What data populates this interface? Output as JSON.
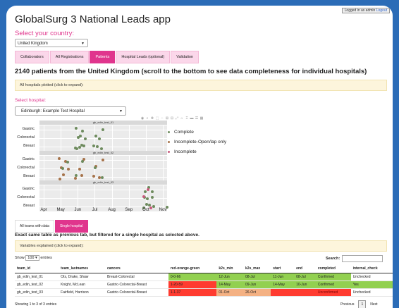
{
  "header": {
    "title": "GlobalSurg 3 National Leads app",
    "login_text": "Logged in as admin",
    "logout_label": "Logout"
  },
  "country": {
    "label": "Select your country:",
    "value": "United Kingdom"
  },
  "tabs": [
    {
      "label": "Collaborators"
    },
    {
      "label": "All Registrations"
    },
    {
      "label": "Patients",
      "active": true
    },
    {
      "label": "Hospital Leads (optional)"
    },
    {
      "label": "Validation"
    }
  ],
  "headline": "2140 patients from the United Kingdom (scroll to the bottom to see data completeness for individual hospitals)",
  "all_hospitals_notice": "All hospitals plotted (click to expand):",
  "hospital": {
    "label": "Select hospital:",
    "value": "Edinburgh: Example Test Hospital"
  },
  "chart_data": {
    "type": "scatter",
    "panels": [
      "gb_edin_test_01",
      "gb_edin_test_02",
      "gb_edin_test_03"
    ],
    "y_categories": [
      "Gastric",
      "Colorectal",
      "Breast"
    ],
    "x_ticks": [
      "Apr",
      "May",
      "Jun",
      "Jul",
      "Aug",
      "Sep",
      "Oct",
      "Nov"
    ],
    "legend": [
      {
        "label": "Complete",
        "color": "#6e8b5e"
      },
      {
        "label": "Incomplete-Open/lap only",
        "color": "#a6734a"
      },
      {
        "label": "Incomplete",
        "color": "#c85a7c"
      }
    ],
    "series": [
      {
        "panel": 0,
        "status": 0,
        "points": [
          [
            "Jun",
            0
          ],
          [
            "Jun",
            0
          ],
          [
            "Jun",
            1
          ],
          [
            "Jun",
            1
          ],
          [
            "Jun",
            1
          ],
          [
            "Jun",
            2
          ],
          [
            "Jun",
            2
          ],
          [
            "Jun",
            2
          ],
          [
            "Jun",
            2
          ],
          [
            "Jun",
            2
          ],
          [
            "Jul",
            0
          ],
          [
            "Jul",
            1
          ],
          [
            "Jul",
            1
          ],
          [
            "Jul",
            2
          ],
          [
            "Jul",
            2
          ],
          [
            "Jul",
            2
          ]
        ]
      },
      {
        "panel": 1,
        "status": 1,
        "points": [
          [
            "May",
            0
          ],
          [
            "May",
            0
          ],
          [
            "May",
            1
          ],
          [
            "May",
            1
          ],
          [
            "May",
            2
          ],
          [
            "May",
            2
          ],
          [
            "Jun",
            0
          ],
          [
            "Jun",
            1
          ],
          [
            "Jun",
            2
          ],
          [
            "Jun",
            2
          ],
          [
            "Jul",
            0
          ],
          [
            "Jul",
            1
          ],
          [
            "Jul",
            2
          ],
          [
            "Jul",
            2
          ]
        ]
      },
      {
        "panel": 1,
        "status": 0,
        "points": [
          [
            "May",
            0
          ],
          [
            "May",
            1
          ],
          [
            "Jun",
            2
          ],
          [
            "Jun",
            0
          ],
          [
            "Jul",
            1
          ],
          [
            "Jul",
            2
          ]
        ]
      },
      {
        "panel": 2,
        "status": 0,
        "points": [
          [
            "Oct",
            0
          ],
          [
            "Oct",
            0
          ],
          [
            "Oct",
            1
          ],
          [
            "Oct",
            1
          ],
          [
            "Oct",
            2
          ],
          [
            "Oct",
            2
          ],
          [
            "Oct",
            2
          ],
          [
            "Oct",
            2
          ],
          [
            "Nov",
            2
          ],
          [
            "Oct",
            1
          ],
          [
            "Oct",
            0
          ]
        ]
      },
      {
        "panel": 2,
        "status": 2,
        "points": [
          [
            "Oct",
            0
          ],
          [
            "Oct",
            1
          ],
          [
            "Oct",
            2
          ]
        ]
      }
    ]
  },
  "subtabs": [
    {
      "label": "All teams with data"
    },
    {
      "label": "Single hospital",
      "active": true
    }
  ],
  "exact_note": "Exact same table as previous tab, but filtered for a single hospital as selected above.",
  "variables_notice": "Variables explained (click to expand):",
  "table_controls": {
    "show_label": "Show",
    "show_value": "100",
    "entries_label": "entries",
    "search_label": "Search:"
  },
  "table": {
    "columns": [
      "team_id",
      "team_lastnames",
      "cancers",
      "red-orange-green",
      "k2s_min",
      "k2s_max",
      "start",
      "end",
      "completed",
      "internal_check"
    ],
    "rows": [
      [
        "gb_edin_test_01",
        "Ots, Drake, Shaw",
        "Breast-Colorectal",
        "0-0-66",
        "12-Jun",
        "08-Jul",
        "11-Jun",
        "08-Jul",
        "Confirmed",
        "Unchecked"
      ],
      [
        "gb_edin_test_02",
        "Knight, McLean",
        "Gastric-Colorectal-Breast",
        "1-20-59",
        "14-May",
        "09-Jun",
        "14-May",
        "10-Jun",
        "Confirmed",
        "Yes"
      ],
      [
        "gb_edin_test_03",
        "Fairfield, Harrison",
        "Gastric-Colorectal-Breast",
        "1-1-37",
        "01-Oct",
        "26-Oct",
        "",
        "",
        "Unconfirmed",
        "Unchecked"
      ]
    ],
    "row_colors": [
      [
        "",
        "",
        "",
        "green",
        "green",
        "green",
        "green",
        "green",
        "green",
        ""
      ],
      [
        "",
        "",
        "",
        "red",
        "green",
        "green",
        "green",
        "green",
        "green",
        "green"
      ],
      [
        "",
        "",
        "",
        "red",
        "orange",
        "orange",
        "red",
        "red",
        "dred",
        ""
      ]
    ]
  },
  "footer": {
    "showing": "Showing 1 to 3 of 3 entries",
    "previous": "Previous",
    "page": "1",
    "next": "Next"
  }
}
